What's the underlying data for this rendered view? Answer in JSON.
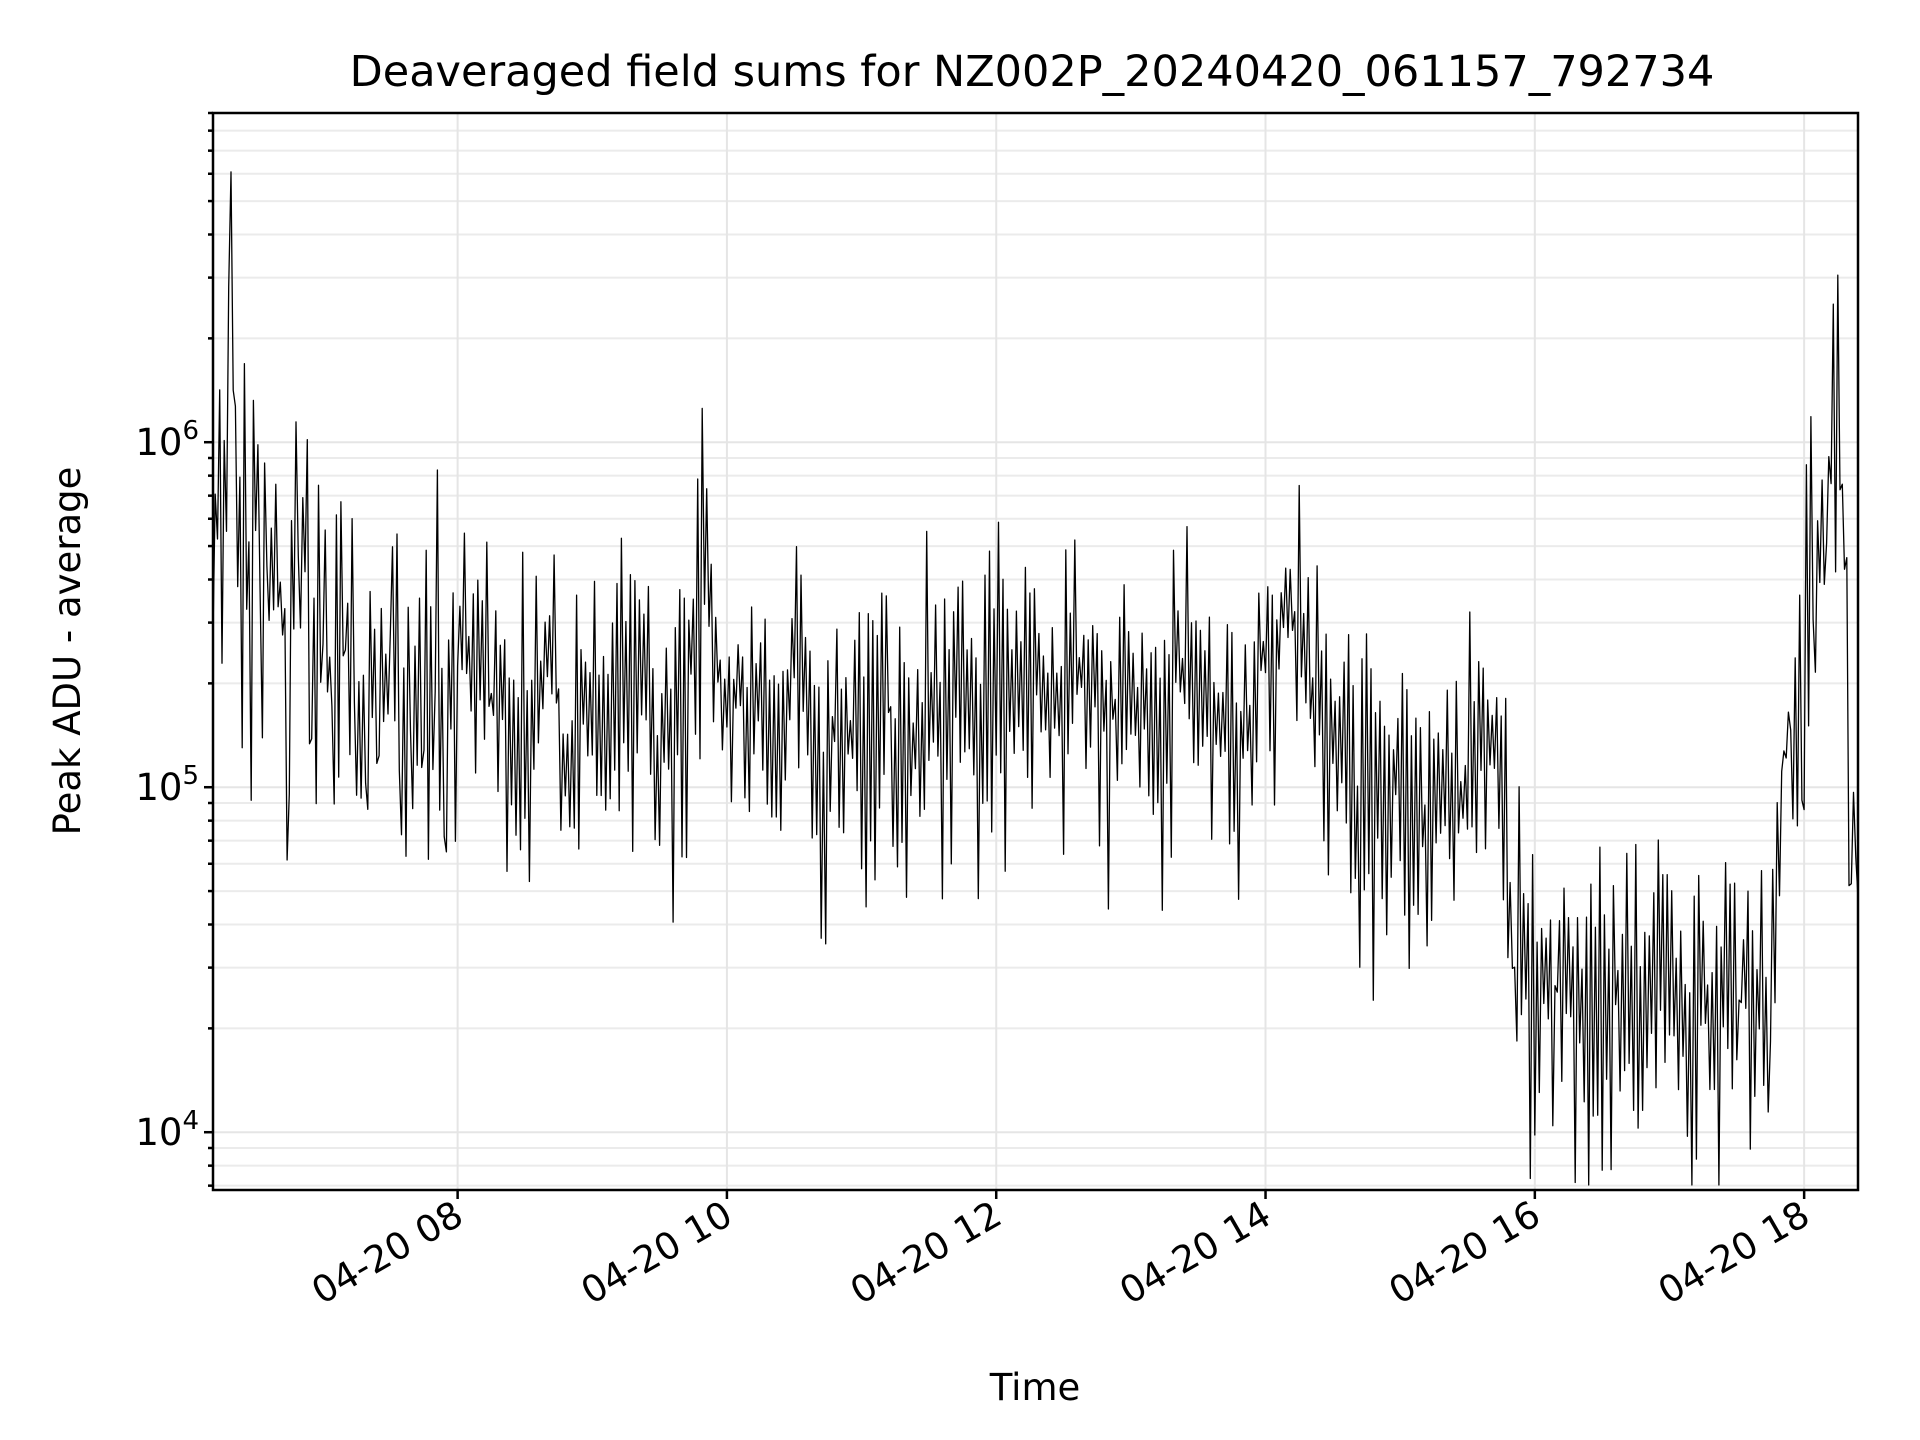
{
  "chart_data": {
    "type": "line",
    "title": "Deaveraged field sums for NZ002P_20240420_061157_792734",
    "xlabel": "Time",
    "ylabel": "Peak ADU - average",
    "yscale": "log",
    "xlim": [
      "2024-04-20 06:11",
      "2024-04-20 18:24"
    ],
    "ylim": [
      6800,
      9000000
    ],
    "grid": true,
    "x_ticks": [
      {
        "x": "2024-04-20 08:00",
        "label": "04-20 08"
      },
      {
        "x": "2024-04-20 10:00",
        "label": "04-20 10"
      },
      {
        "x": "2024-04-20 12:00",
        "label": "04-20 12"
      },
      {
        "x": "2024-04-20 14:00",
        "label": "04-20 14"
      },
      {
        "x": "2024-04-20 16:00",
        "label": "04-20 16"
      },
      {
        "x": "2024-04-20 18:00",
        "label": "04-20 18"
      }
    ],
    "y_ticks": [
      {
        "y": 10000,
        "base": "10",
        "exp": "4"
      },
      {
        "y": 100000,
        "base": "10",
        "exp": "5"
      },
      {
        "y": 1000000,
        "base": "10",
        "exp": "6"
      }
    ],
    "series": [
      {
        "color": "#000000",
        "x": [
          "2024-04-20 06:11",
          "2024-04-20 06:13",
          "2024-04-20 06:15",
          "2024-04-20 06:17",
          "2024-04-20 06:19",
          "2024-04-20 06:20",
          "2024-04-20 06:21",
          "2024-04-20 06:22",
          "2024-04-20 06:24",
          "2024-04-20 06:26",
          "2024-04-20 06:28",
          "2024-04-20 06:30",
          "2024-04-20 06:33",
          "2024-04-20 06:36",
          "2024-04-20 06:40",
          "2024-04-20 06:45",
          "2024-04-20 06:50",
          "2024-04-20 06:55",
          "2024-04-20 07:00",
          "2024-04-20 07:05",
          "2024-04-20 07:10",
          "2024-04-20 07:15",
          "2024-04-20 07:20",
          "2024-04-20 07:25",
          "2024-04-20 07:30",
          "2024-04-20 07:35",
          "2024-04-20 07:40",
          "2024-04-20 07:45",
          "2024-04-20 07:50",
          "2024-04-20 07:55",
          "2024-04-20 08:00",
          "2024-04-20 08:10",
          "2024-04-20 08:20",
          "2024-04-20 08:30",
          "2024-04-20 08:40",
          "2024-04-20 08:50",
          "2024-04-20 09:00",
          "2024-04-20 09:10",
          "2024-04-20 09:20",
          "2024-04-20 09:30",
          "2024-04-20 09:40",
          "2024-04-20 09:50",
          "2024-04-20 10:00",
          "2024-04-20 10:10",
          "2024-04-20 10:20",
          "2024-04-20 10:30",
          "2024-04-20 10:40",
          "2024-04-20 10:50",
          "2024-04-20 11:00",
          "2024-04-20 11:10",
          "2024-04-20 11:20",
          "2024-04-20 11:30",
          "2024-04-20 11:40",
          "2024-04-20 11:50",
          "2024-04-20 12:00",
          "2024-04-20 12:10",
          "2024-04-20 12:20",
          "2024-04-20 12:30",
          "2024-04-20 12:40",
          "2024-04-20 12:50",
          "2024-04-20 13:00",
          "2024-04-20 13:10",
          "2024-04-20 13:20",
          "2024-04-20 13:30",
          "2024-04-20 13:40",
          "2024-04-20 13:50",
          "2024-04-20 14:00",
          "2024-04-20 14:10",
          "2024-04-20 14:20",
          "2024-04-20 14:30",
          "2024-04-20 14:40",
          "2024-04-20 14:50",
          "2024-04-20 15:00",
          "2024-04-20 15:10",
          "2024-04-20 15:20",
          "2024-04-20 15:30",
          "2024-04-20 15:40",
          "2024-04-20 15:46",
          "2024-04-20 15:50",
          "2024-04-20 16:00",
          "2024-04-20 16:10",
          "2024-04-20 16:20",
          "2024-04-20 16:30",
          "2024-04-20 16:40",
          "2024-04-20 16:50",
          "2024-04-20 17:00",
          "2024-04-20 17:10",
          "2024-04-20 17:20",
          "2024-04-20 17:30",
          "2024-04-20 17:40",
          "2024-04-20 17:45",
          "2024-04-20 17:50",
          "2024-04-20 17:55",
          "2024-04-20 18:00",
          "2024-04-20 18:05",
          "2024-04-20 18:10",
          "2024-04-20 18:14",
          "2024-04-20 18:18",
          "2024-04-20 18:21",
          "2024-04-20 18:24"
        ],
        "y": [
          520000,
          900000,
          380000,
          650000,
          7200000,
          2800000,
          1600000,
          900000,
          320000,
          750000,
          240000,
          1200000,
          380000,
          560000,
          420000,
          180000,
          650000,
          240000,
          420000,
          160000,
          380000,
          150000,
          260000,
          130000,
          340000,
          120000,
          230000,
          170000,
          320000,
          140000,
          260000,
          200000,
          170000,
          150000,
          260000,
          110000,
          190000,
          140000,
          230000,
          110000,
          200000,
          460000,
          160000,
          190000,
          140000,
          230000,
          110000,
          150000,
          130000,
          180000,
          120000,
          200000,
          170000,
          130000,
          240000,
          210000,
          190000,
          170000,
          230000,
          160000,
          200000,
          140000,
          220000,
          170000,
          150000,
          130000,
          260000,
          340000,
          180000,
          140000,
          100000,
          85000,
          110000,
          80000,
          120000,
          90000,
          150000,
          95000,
          30000,
          24000,
          26000,
          22000,
          28000,
          23000,
          25000,
          27000,
          22000,
          26000,
          24000,
          23000,
          28000,
          120000,
          160000,
          260000,
          420000,
          650000,
          1600000,
          560000,
          120000,
          48000
        ]
      }
    ]
  }
}
